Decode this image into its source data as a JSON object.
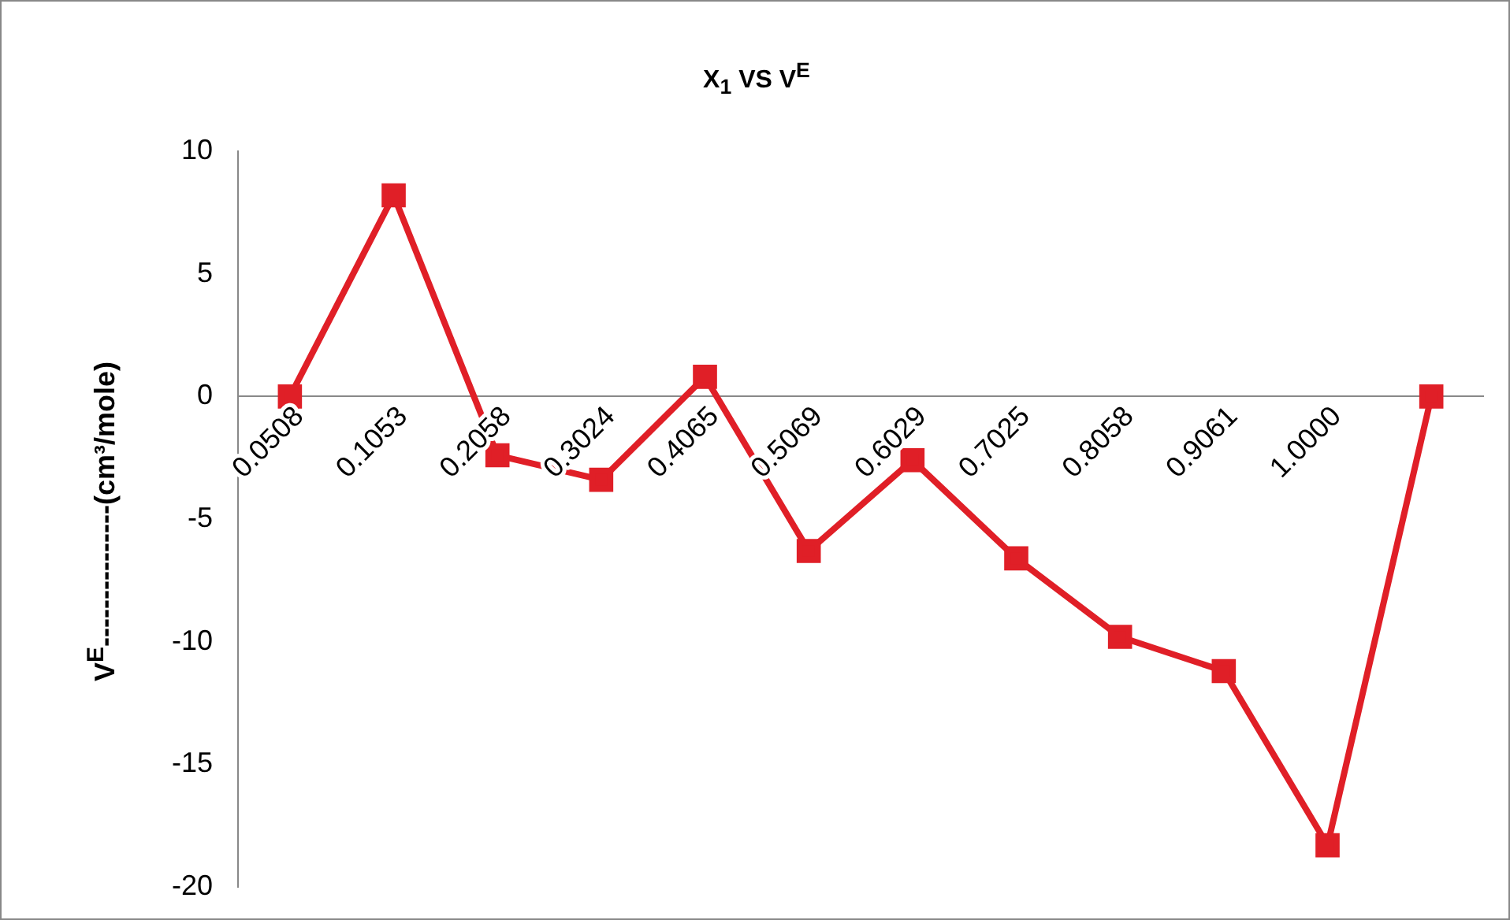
{
  "chart_data": {
    "type": "line",
    "title": "X$_{1}$ VS V$^{E}$",
    "ylabel": "V$^{E}$---------------(cm³/mole)",
    "categories": [
      "0.0508",
      "0.1053",
      "0.2058",
      "0.3024",
      "0.4065",
      "0.5069",
      "0.6029",
      "0.7025",
      "0.8058",
      "0.9061",
      "1.0000",
      null
    ],
    "series": [
      {
        "color": "#e01f27",
        "values": [
          0,
          8.2,
          -2.4,
          -3.4,
          0.8,
          -6.3,
          -2.6,
          -6.6,
          -9.8,
          -11.2,
          -18.3,
          0
        ]
      }
    ],
    "ylim": [
      -20,
      10
    ],
    "yticks": [
      -20,
      -15,
      -10,
      -5,
      0,
      5,
      10
    ],
    "grid": false,
    "legend": false,
    "marker": "square",
    "line_style": "solid"
  }
}
